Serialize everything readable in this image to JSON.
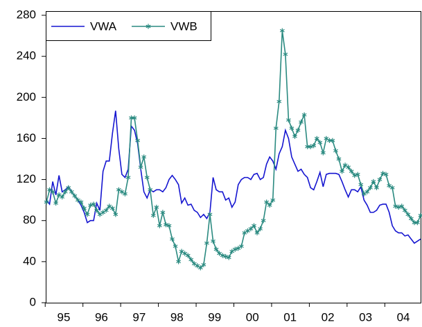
{
  "chart_data": {
    "type": "line",
    "categories": [
      null,
      null,
      null,
      null,
      null,
      null,
      "95",
      null,
      null,
      null,
      null,
      null,
      null,
      null,
      null,
      null,
      null,
      null,
      "96",
      null,
      null,
      null,
      null,
      null,
      null,
      null,
      null,
      null,
      null,
      null,
      "97",
      null,
      null,
      null,
      null,
      null,
      null,
      null,
      null,
      null,
      null,
      null,
      "98",
      null,
      null,
      null,
      null,
      null,
      null,
      null,
      null,
      null,
      null,
      null,
      "99",
      null,
      null,
      null,
      null,
      null,
      null,
      null,
      null,
      null,
      null,
      null,
      "00",
      null,
      null,
      null,
      null,
      null,
      null,
      null,
      null,
      null,
      null,
      null,
      "01",
      null,
      null,
      null,
      null,
      null,
      null,
      null,
      null,
      null,
      null,
      null,
      "02",
      null,
      null,
      null,
      null,
      null,
      null,
      null,
      null,
      null,
      null,
      null,
      "03",
      null,
      null,
      null,
      null,
      null,
      null,
      null,
      null,
      null,
      null,
      null,
      "04",
      null,
      null,
      null,
      null,
      null
    ],
    "series": [
      {
        "name": "VWA",
        "color": "#1515d0",
        "marker": "none",
        "values": [
          100,
          96,
          118,
          105,
          124,
          108,
          110,
          113,
          108,
          104,
          100,
          95,
          88,
          78,
          80,
          80,
          97,
          90,
          128,
          138,
          138,
          165,
          187,
          150,
          125,
          122,
          130,
          172,
          168,
          155,
          130,
          108,
          102,
          110,
          108,
          110,
          110,
          108,
          112,
          120,
          124,
          120,
          115,
          97,
          102,
          95,
          96,
          90,
          88,
          83,
          86,
          82,
          88,
          122,
          110,
          108,
          108,
          100,
          102,
          93,
          98,
          115,
          120,
          122,
          122,
          120,
          125,
          126,
          120,
          122,
          135,
          142,
          138,
          130,
          145,
          152,
          168,
          160,
          142,
          135,
          128,
          130,
          125,
          122,
          112,
          110,
          118,
          127,
          113,
          125,
          126,
          126,
          126,
          125,
          118,
          110,
          103,
          110,
          110,
          108,
          113,
          100,
          95,
          88,
          88,
          90,
          95,
          96,
          96,
          88,
          75,
          70,
          68,
          68,
          65,
          66,
          62,
          58,
          60,
          62
        ]
      },
      {
        "name": "VWB",
        "color": "#2a8a80",
        "marker": "star",
        "values": [
          98,
          110,
          108,
          97,
          105,
          103,
          108,
          112,
          108,
          104,
          100,
          98,
          92,
          86,
          95,
          96,
          90,
          86,
          88,
          90,
          94,
          92,
          86,
          110,
          108,
          106,
          122,
          180,
          180,
          158,
          132,
          142,
          122,
          110,
          85,
          93,
          75,
          88,
          76,
          75,
          62,
          55,
          40,
          50,
          48,
          46,
          42,
          38,
          36,
          34,
          37,
          58,
          86,
          60,
          52,
          48,
          46,
          45,
          44,
          50,
          52,
          53,
          55,
          68,
          70,
          72,
          75,
          68,
          72,
          80,
          98,
          95,
          100,
          170,
          196,
          265,
          242,
          178,
          170,
          162,
          168,
          176,
          183,
          152,
          152,
          153,
          160,
          156,
          146,
          160,
          158,
          158,
          148,
          140,
          128,
          134,
          132,
          128,
          124,
          125,
          115,
          106,
          108,
          112,
          118,
          112,
          120,
          126,
          125,
          114,
          112,
          94,
          93,
          94,
          90,
          86,
          82,
          78,
          78,
          85
        ]
      }
    ],
    "ylim": [
      0,
      280
    ],
    "yticks": [
      0,
      40,
      80,
      120,
      160,
      200,
      240,
      280
    ],
    "grid": false,
    "legend": "upper left"
  }
}
